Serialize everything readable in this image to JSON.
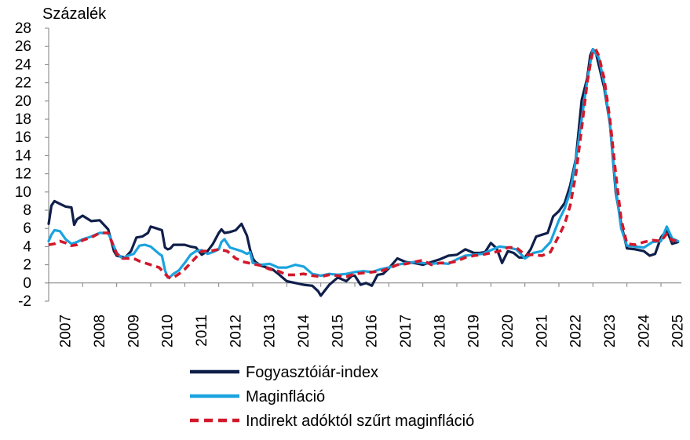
{
  "chart_data": {
    "type": "line",
    "title": "",
    "ylabel": "Százalék",
    "xlabel": "",
    "ylim": [
      -2,
      28
    ],
    "yticks": [
      -2,
      0,
      2,
      4,
      6,
      8,
      10,
      12,
      14,
      16,
      18,
      20,
      22,
      24,
      26,
      28
    ],
    "xlim": [
      2007,
      2025.6
    ],
    "xticks": [
      "2007",
      "2008",
      "2009",
      "2010",
      "2011",
      "2012",
      "2013",
      "2014",
      "2015",
      "2016",
      "2017",
      "2018",
      "2019",
      "2020",
      "2021",
      "2022",
      "2023",
      "2024",
      "2025"
    ],
    "grid": false,
    "legend_position": "bottom",
    "series": [
      {
        "name": "Fogyasztóiár-index",
        "color": "#0f1f4a",
        "dash": "solid",
        "x": [
          2007.0,
          2007.08,
          2007.17,
          2007.33,
          2007.5,
          2007.67,
          2007.75,
          2007.83,
          2008.0,
          2008.25,
          2008.5,
          2008.75,
          2008.92,
          2009.0,
          2009.25,
          2009.42,
          2009.58,
          2009.75,
          2009.92,
          2010.0,
          2010.17,
          2010.33,
          2010.42,
          2010.5,
          2010.58,
          2010.67,
          2010.83,
          2011.0,
          2011.17,
          2011.33,
          2011.5,
          2011.67,
          2011.83,
          2012.0,
          2012.08,
          2012.17,
          2012.33,
          2012.5,
          2012.67,
          2012.83,
          2012.92,
          2013.0,
          2013.08,
          2013.25,
          2013.42,
          2013.58,
          2013.75,
          2014.0,
          2014.25,
          2014.5,
          2014.75,
          2014.92,
          2015.0,
          2015.25,
          2015.5,
          2015.75,
          2015.92,
          2016.0,
          2016.17,
          2016.33,
          2016.5,
          2016.67,
          2016.83,
          2017.0,
          2017.25,
          2017.5,
          2017.75,
          2018.0,
          2018.25,
          2018.5,
          2018.75,
          2019.0,
          2019.25,
          2019.5,
          2019.67,
          2019.83,
          2020.0,
          2020.17,
          2020.33,
          2020.5,
          2020.67,
          2020.83,
          2021.0,
          2021.17,
          2021.33,
          2021.5,
          2021.67,
          2021.83,
          2022.0,
          2022.17,
          2022.33,
          2022.5,
          2022.67,
          2022.83,
          2022.92,
          2023.0,
          2023.08,
          2023.17,
          2023.33,
          2023.5,
          2023.67,
          2023.83,
          2024.0,
          2024.25,
          2024.5,
          2024.67,
          2024.83,
          2025.0,
          2025.17,
          2025.33,
          2025.5
        ],
        "values": [
          6.5,
          8.5,
          9.0,
          8.7,
          8.4,
          8.3,
          6.4,
          7.0,
          7.4,
          6.8,
          6.9,
          5.9,
          3.5,
          3.0,
          2.8,
          3.5,
          5.0,
          5.1,
          5.5,
          6.2,
          6.0,
          5.8,
          3.9,
          3.7,
          3.8,
          4.2,
          4.2,
          4.2,
          4.0,
          3.9,
          3.1,
          3.5,
          4.3,
          5.5,
          5.9,
          5.5,
          5.6,
          5.8,
          6.5,
          5.2,
          3.7,
          2.7,
          2.3,
          1.9,
          1.7,
          1.5,
          1.0,
          0.2,
          0.0,
          -0.2,
          -0.3,
          -0.9,
          -1.4,
          -0.2,
          0.6,
          0.2,
          0.8,
          0.8,
          -0.2,
          0.0,
          -0.3,
          0.9,
          1.0,
          1.6,
          2.7,
          2.3,
          2.2,
          2.0,
          2.3,
          2.6,
          3.0,
          3.1,
          3.7,
          3.3,
          3.3,
          3.4,
          4.4,
          3.8,
          2.2,
          3.5,
          3.3,
          2.8,
          2.8,
          3.7,
          5.1,
          5.3,
          5.5,
          7.3,
          7.9,
          8.8,
          10.7,
          13.7,
          20.1,
          22.5,
          25.0,
          25.7,
          25.4,
          24.0,
          21.5,
          17.5,
          10.0,
          6.5,
          3.8,
          3.7,
          3.5,
          3.0,
          3.2,
          5.0,
          5.8,
          4.3,
          4.5
        ]
      },
      {
        "name": "Maginfláció",
        "color": "#1aa3df",
        "dash": "solid",
        "x": [
          2007.0,
          2007.08,
          2007.17,
          2007.33,
          2007.5,
          2007.67,
          2007.83,
          2008.0,
          2008.25,
          2008.5,
          2008.75,
          2009.0,
          2009.17,
          2009.33,
          2009.5,
          2009.67,
          2009.83,
          2010.0,
          2010.25,
          2010.33,
          2010.42,
          2010.5,
          2010.58,
          2010.67,
          2010.83,
          2011.0,
          2011.17,
          2011.33,
          2011.5,
          2011.67,
          2011.83,
          2012.0,
          2012.08,
          2012.17,
          2012.33,
          2012.5,
          2012.67,
          2012.83,
          2012.92,
          2013.0,
          2013.25,
          2013.5,
          2013.75,
          2014.0,
          2014.25,
          2014.5,
          2014.75,
          2015.0,
          2015.25,
          2015.5,
          2015.75,
          2016.0,
          2016.25,
          2016.5,
          2016.75,
          2017.0,
          2017.25,
          2017.5,
          2017.75,
          2018.0,
          2018.25,
          2018.5,
          2018.75,
          2019.0,
          2019.25,
          2019.5,
          2019.75,
          2020.0,
          2020.25,
          2020.5,
          2020.75,
          2021.0,
          2021.25,
          2021.5,
          2021.75,
          2022.0,
          2022.17,
          2022.33,
          2022.5,
          2022.67,
          2022.83,
          2022.92,
          2023.0,
          2023.08,
          2023.17,
          2023.33,
          2023.5,
          2023.67,
          2023.83,
          2024.0,
          2024.25,
          2024.5,
          2024.75,
          2025.0,
          2025.17,
          2025.33,
          2025.5
        ],
        "values": [
          4.6,
          5.3,
          5.8,
          5.7,
          4.8,
          4.3,
          4.5,
          4.8,
          5.1,
          5.5,
          5.5,
          3.3,
          2.7,
          3.0,
          3.2,
          4.1,
          4.2,
          4.0,
          3.2,
          3.0,
          1.4,
          0.6,
          0.7,
          1.0,
          1.4,
          2.2,
          3.1,
          3.5,
          3.6,
          3.2,
          3.4,
          3.7,
          4.5,
          4.8,
          3.9,
          3.7,
          3.5,
          3.2,
          3.4,
          2.2,
          2.0,
          2.1,
          1.7,
          1.7,
          2.0,
          1.8,
          1.0,
          0.8,
          1.0,
          0.9,
          1.0,
          1.2,
          1.3,
          1.2,
          1.5,
          1.7,
          2.0,
          2.2,
          2.3,
          2.2,
          2.1,
          2.2,
          2.1,
          2.6,
          3.0,
          3.1,
          3.2,
          3.6,
          4.0,
          3.9,
          3.7,
          2.7,
          3.3,
          3.5,
          4.5,
          6.9,
          8.2,
          10.0,
          13.5,
          18.0,
          22.2,
          24.2,
          25.7,
          25.2,
          24.8,
          22.0,
          17.5,
          10.5,
          6.0,
          4.1,
          4.0,
          3.9,
          4.5,
          4.6,
          6.2,
          4.9,
          4.6
        ]
      },
      {
        "name": "Indirekt adóktól szűrt maginfláció",
        "color": "#d2182a",
        "dash": "dashed",
        "x": [
          2007.0,
          2007.17,
          2007.33,
          2007.5,
          2007.67,
          2007.83,
          2008.0,
          2008.25,
          2008.5,
          2008.75,
          2009.0,
          2009.17,
          2009.33,
          2009.5,
          2009.67,
          2009.83,
          2010.0,
          2010.25,
          2010.42,
          2010.5,
          2010.58,
          2010.67,
          2010.83,
          2011.0,
          2011.25,
          2011.5,
          2011.75,
          2012.0,
          2012.25,
          2012.5,
          2012.75,
          2013.0,
          2013.25,
          2013.5,
          2013.75,
          2014.0,
          2014.25,
          2014.5,
          2014.75,
          2015.0,
          2015.25,
          2015.5,
          2015.75,
          2016.0,
          2016.25,
          2016.5,
          2016.75,
          2017.0,
          2017.25,
          2017.5,
          2017.75,
          2018.0,
          2018.25,
          2018.5,
          2018.75,
          2019.0,
          2019.25,
          2019.5,
          2019.75,
          2020.0,
          2020.25,
          2020.5,
          2020.75,
          2021.0,
          2021.25,
          2021.5,
          2021.75,
          2022.0,
          2022.17,
          2022.33,
          2022.5,
          2022.67,
          2022.83,
          2022.92,
          2023.0,
          2023.08,
          2023.17,
          2023.33,
          2023.5,
          2023.67,
          2023.83,
          2024.0,
          2024.25,
          2024.5,
          2024.75,
          2025.0,
          2025.17,
          2025.33,
          2025.5
        ],
        "values": [
          4.2,
          4.3,
          4.6,
          4.4,
          4.1,
          4.2,
          4.7,
          5.0,
          5.5,
          5.5,
          3.2,
          2.7,
          2.7,
          2.7,
          2.4,
          2.2,
          2.0,
          1.7,
          1.0,
          0.7,
          0.5,
          0.6,
          1.0,
          1.5,
          2.5,
          3.5,
          3.5,
          3.7,
          3.5,
          2.7,
          2.3,
          2.1,
          1.9,
          1.5,
          1.3,
          0.9,
          0.9,
          1.0,
          0.8,
          0.7,
          0.9,
          0.8,
          0.7,
          1.0,
          1.1,
          1.2,
          1.3,
          1.6,
          2.0,
          2.1,
          2.3,
          2.5,
          2.0,
          2.2,
          2.2,
          2.4,
          2.8,
          3.0,
          3.1,
          3.3,
          3.5,
          3.9,
          3.9,
          3.1,
          3.1,
          3.0,
          3.4,
          5.2,
          6.5,
          8.5,
          12.0,
          17.0,
          22.0,
          24.0,
          25.5,
          25.7,
          25.0,
          22.5,
          18.0,
          12.0,
          7.0,
          4.3,
          4.2,
          4.5,
          4.7,
          4.6,
          5.4,
          4.7,
          4.6
        ]
      }
    ]
  }
}
